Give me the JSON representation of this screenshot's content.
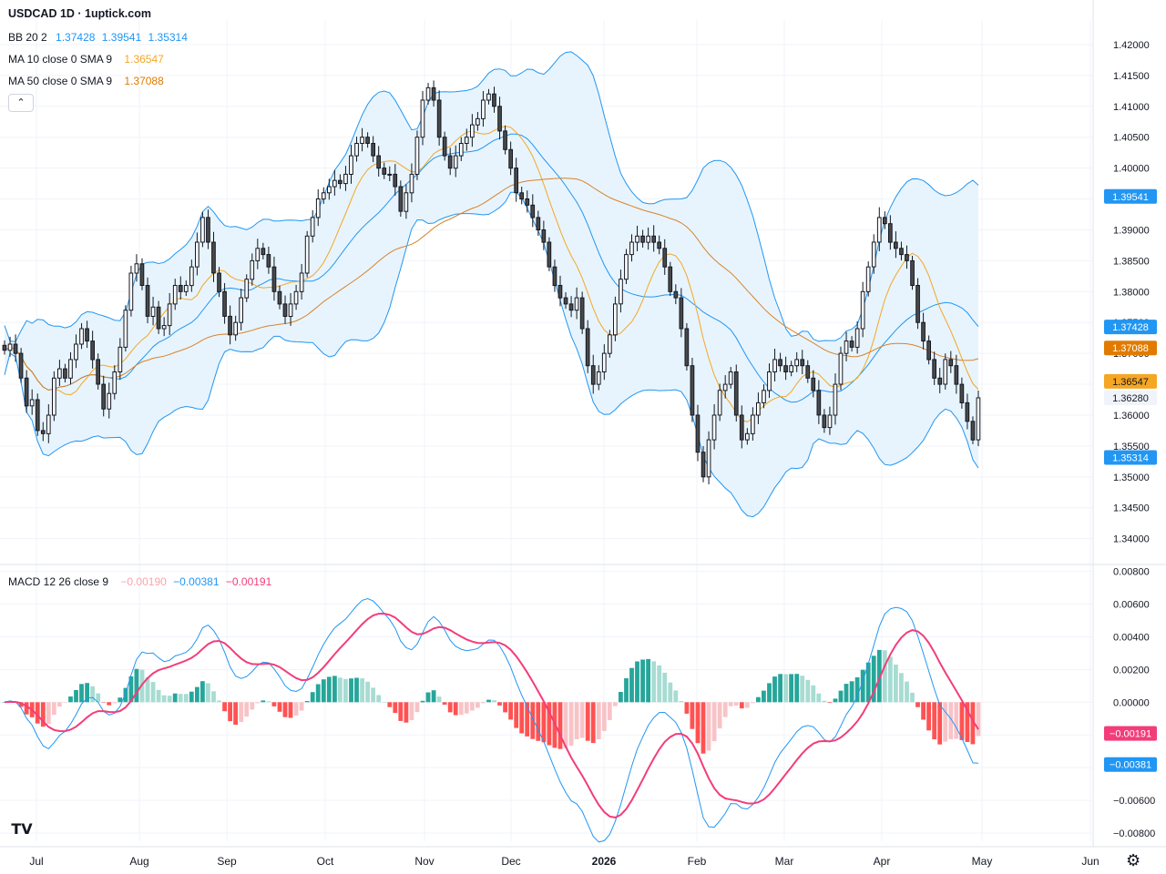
{
  "title": "USDCAD 1D · 1uptick.com",
  "legend": {
    "bb": {
      "label": "BB 20 2",
      "basis": "1.37428",
      "upper": "1.39541",
      "lower": "1.35314",
      "color": "#2196f3"
    },
    "ma10": {
      "label": "MA 10 close 0 SMA 9",
      "value": "1.36547",
      "color": "#f5a623"
    },
    "ma50": {
      "label": "MA 50 close 0 SMA 9",
      "value": "1.37088",
      "color": "#e07b00"
    },
    "macd": {
      "label": "MACD 12 26 close 9",
      "hist": "−0.00190",
      "macd": "−0.00381",
      "signal": "−0.00191"
    }
  },
  "colors": {
    "up": "#ffffff",
    "down": "#4a4a4a",
    "wick": "#131722",
    "bb_line": "#2196f3",
    "bb_fill": "#e3f2fd",
    "ma10": "#f5a623",
    "ma50": "#d9822b",
    "macd_line": "#2196f3",
    "signal_line": "#f23d7a",
    "hist_pos_strong": "#26a69a",
    "hist_pos_weak": "#a7dcd2",
    "hist_neg_strong": "#ff5252",
    "hist_neg_weak": "#f8c3c7"
  },
  "chart_data": [
    {
      "type": "candlestick",
      "symbol": "USDCAD",
      "timeframe": "1D",
      "ylim": [
        1.337,
        1.4225
      ],
      "price_ticks": [
        "1.42000",
        "1.41500",
        "1.41000",
        "1.40500",
        "1.40000",
        "1.39500",
        "1.39000",
        "1.38500",
        "1.38000",
        "1.37500",
        "1.37000",
        "1.36500",
        "1.36000",
        "1.35500",
        "1.35000",
        "1.34500",
        "1.34000"
      ],
      "x_labels": [
        "Jul",
        "Aug",
        "Sep",
        "Oct",
        "Nov",
        "Dec",
        "2026",
        "Feb",
        "Mar",
        "Apr",
        "May",
        "Jun"
      ],
      "x_label_bold": "2026",
      "price_tags": [
        {
          "value": "1.39541",
          "y": 1.39541,
          "bg": "#2196f3",
          "fg": "#ffffff"
        },
        {
          "value": "1.37428",
          "y": 1.37428,
          "bg": "#2196f3",
          "fg": "#ffffff"
        },
        {
          "value": "1.37088",
          "y": 1.37088,
          "bg": "#e07b00",
          "fg": "#ffffff"
        },
        {
          "value": "1.36547",
          "y": 1.36547,
          "bg": "#f5a623",
          "fg": "#131722"
        },
        {
          "value": "1.36280",
          "y": 1.3628,
          "bg": "#f0f3fa",
          "fg": "#131722"
        },
        {
          "value": "1.35314",
          "y": 1.35314,
          "bg": "#2196f3",
          "fg": "#ffffff"
        }
      ],
      "closes": [
        1.3705,
        1.3715,
        1.37,
        1.366,
        1.3615,
        1.3625,
        1.3575,
        1.357,
        1.36,
        1.366,
        1.3675,
        1.366,
        1.369,
        1.3715,
        1.374,
        1.372,
        1.369,
        1.365,
        1.361,
        1.3635,
        1.367,
        1.371,
        1.377,
        1.383,
        1.3845,
        1.381,
        1.376,
        1.3775,
        1.374,
        1.3745,
        1.378,
        1.381,
        1.38,
        1.381,
        1.384,
        1.388,
        1.392,
        1.388,
        1.383,
        1.38,
        1.376,
        1.373,
        1.375,
        1.379,
        1.382,
        1.385,
        1.387,
        1.386,
        1.384,
        1.38,
        1.378,
        1.376,
        1.378,
        1.38,
        1.383,
        1.389,
        1.392,
        1.395,
        1.396,
        1.397,
        1.398,
        1.3975,
        1.399,
        1.402,
        1.404,
        1.405,
        1.404,
        1.402,
        1.4,
        1.399,
        1.399,
        1.397,
        1.393,
        1.396,
        1.399,
        1.405,
        1.411,
        1.413,
        1.411,
        1.405,
        1.402,
        1.4,
        1.402,
        1.404,
        1.405,
        1.407,
        1.408,
        1.411,
        1.412,
        1.41,
        1.406,
        1.403,
        1.4,
        1.396,
        1.395,
        1.394,
        1.392,
        1.39,
        1.388,
        1.384,
        1.381,
        1.379,
        1.378,
        1.377,
        1.379,
        1.374,
        1.368,
        1.365,
        1.367,
        1.37,
        1.373,
        1.378,
        1.382,
        1.386,
        1.388,
        1.389,
        1.388,
        1.389,
        1.388,
        1.387,
        1.384,
        1.38,
        1.379,
        1.374,
        1.368,
        1.36,
        1.354,
        1.35,
        1.356,
        1.36,
        1.364,
        1.365,
        1.367,
        1.36,
        1.356,
        1.357,
        1.36,
        1.362,
        1.364,
        1.367,
        1.369,
        1.368,
        1.367,
        1.368,
        1.369,
        1.368,
        1.366,
        1.364,
        1.36,
        1.358,
        1.36,
        1.365,
        1.37,
        1.372,
        1.371,
        1.374,
        1.38,
        1.384,
        1.388,
        1.392,
        1.391,
        1.388,
        1.387,
        1.386,
        1.385,
        1.381,
        1.375,
        1.372,
        1.369,
        1.366,
        1.365,
        1.369,
        1.368,
        1.365,
        1.362,
        1.359,
        1.356,
        1.3628
      ],
      "bollinger": {
        "period": 20,
        "mult": 2
      },
      "ma10_period": 10,
      "ma50_period": 50
    },
    {
      "type": "macd",
      "ylim": [
        -0.0085,
        0.0082
      ],
      "ticks": [
        "0.00800",
        "0.00600",
        "0.00400",
        "0.00200",
        "0.00000",
        "−0.00200",
        "−0.00400",
        "−0.00600",
        "−0.00800"
      ],
      "tags": [
        {
          "value": "−0.00190",
          "y": -0.0019,
          "bg": "#f8c3c7",
          "fg": "#131722"
        },
        {
          "value": "−0.00191",
          "y": -0.00191,
          "bg": "#f23d7a",
          "fg": "#ffffff"
        },
        {
          "value": "−0.00381",
          "y": -0.00381,
          "bg": "#2196f3",
          "fg": "#ffffff"
        }
      ],
      "fast": 12,
      "slow": 26,
      "signal": 9
    }
  ]
}
